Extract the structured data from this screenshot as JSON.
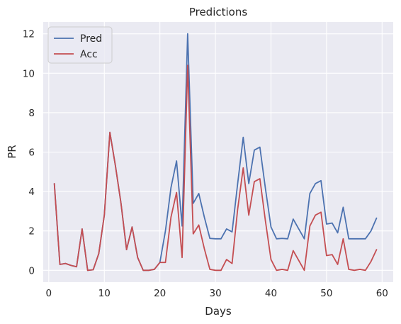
{
  "chart_data": {
    "type": "line",
    "title": "Predictions",
    "xlabel": "Days",
    "ylabel": "PR",
    "xlim": [
      -1,
      62
    ],
    "ylim": [
      -0.6,
      12.6
    ],
    "xticks": [
      0,
      10,
      20,
      30,
      40,
      50,
      60
    ],
    "yticks": [
      0,
      2,
      4,
      6,
      8,
      10,
      12
    ],
    "grid": true,
    "legend_position": "top-left",
    "x": [
      1,
      2,
      3,
      4,
      5,
      6,
      7,
      8,
      9,
      10,
      11,
      12,
      13,
      14,
      15,
      16,
      17,
      18,
      19,
      20,
      21,
      22,
      23,
      24,
      25,
      26,
      27,
      28,
      29,
      30,
      31,
      32,
      33,
      34,
      35,
      36,
      37,
      38,
      39,
      40,
      41,
      42,
      43,
      44,
      45,
      46,
      47,
      48,
      49,
      50,
      51,
      52,
      53,
      54,
      55,
      56,
      57,
      58,
      59
    ],
    "series": [
      {
        "name": "Pred",
        "color": "#4c72b0",
        "values": [
          4.4,
          0.3,
          0.35,
          0.25,
          0.18,
          2.1,
          0.0,
          0.03,
          0.85,
          2.8,
          7.0,
          5.3,
          3.4,
          1.05,
          2.2,
          0.65,
          0.0,
          0.0,
          0.05,
          0.4,
          2.0,
          4.2,
          5.55,
          2.25,
          12.0,
          3.4,
          3.9,
          2.7,
          1.62,
          1.6,
          1.6,
          2.1,
          1.95,
          4.4,
          6.75,
          4.4,
          6.1,
          6.25,
          4.15,
          2.2,
          1.6,
          1.62,
          1.6,
          2.6,
          2.1,
          1.6,
          3.9,
          4.4,
          4.55,
          2.35,
          2.4,
          1.9,
          3.2,
          1.6,
          1.6,
          1.6,
          1.6,
          2.0,
          2.65
        ]
      },
      {
        "name": "Acc",
        "color": "#c44e52",
        "values": [
          4.4,
          0.3,
          0.35,
          0.25,
          0.18,
          2.1,
          0.0,
          0.03,
          0.85,
          2.8,
          7.0,
          5.3,
          3.4,
          1.05,
          2.2,
          0.65,
          0.0,
          0.0,
          0.05,
          0.4,
          0.4,
          2.7,
          3.95,
          0.65,
          10.4,
          1.85,
          2.3,
          1.1,
          0.05,
          0.0,
          0.0,
          0.55,
          0.35,
          3.1,
          5.2,
          2.8,
          4.5,
          4.65,
          2.5,
          0.55,
          0.0,
          0.05,
          0.0,
          1.0,
          0.5,
          0.0,
          2.25,
          2.8,
          2.95,
          0.75,
          0.8,
          0.3,
          1.6,
          0.05,
          0.0,
          0.05,
          0.0,
          0.45,
          1.05
        ]
      }
    ]
  },
  "style": {
    "plot_background": "#eaeaf2",
    "grid_color": "#ffffff",
    "text_color": "#262626"
  }
}
